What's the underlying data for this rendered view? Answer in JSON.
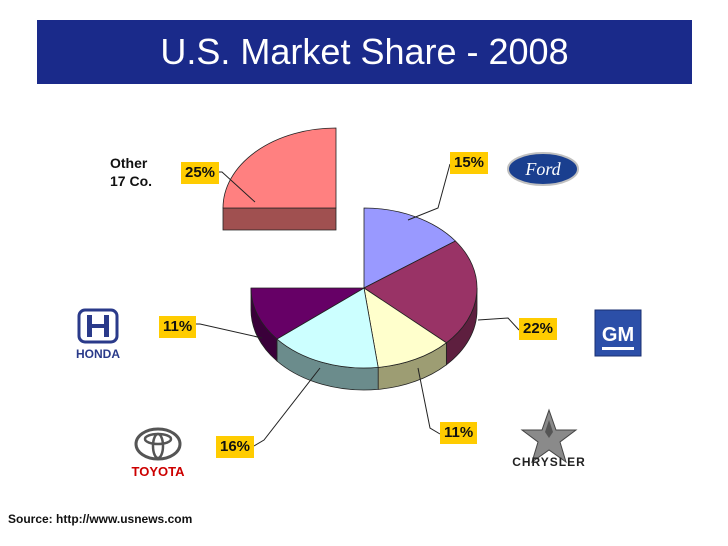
{
  "title": "U.S. Market Share - 2008",
  "source": "Source: http://www.usnews.com",
  "other_label": [
    "Other",
    "17 Co."
  ],
  "logos": {
    "ford": "Ford",
    "gm": "GM",
    "honda": "HONDA",
    "toyota": "TOYOTA",
    "chrysler": "CHRYSLER"
  },
  "chart_data": {
    "type": "pie",
    "title": "U.S. Market Share - 2008",
    "slices": [
      {
        "label": "Ford",
        "value": 15,
        "text": "15%",
        "color": "#9999ff",
        "side": "#6b6bb3"
      },
      {
        "label": "GM",
        "value": 22,
        "text": "22%",
        "color": "#993366",
        "side": "#5e1f3f"
      },
      {
        "label": "Chrysler",
        "value": 11,
        "text": "11%",
        "color": "#ffffcc",
        "side": "#9d9d73"
      },
      {
        "label": "Toyota",
        "value": 16,
        "text": "16%",
        "color": "#ccffff",
        "side": "#6b8c8c"
      },
      {
        "label": "Honda",
        "value": 11,
        "text": "11%",
        "color": "#660066",
        "side": "#3a003a"
      },
      {
        "label": "Other 17 Co.",
        "value": 25,
        "text": "25%",
        "color": "#ff8080",
        "side": "#a05050",
        "exploded": true
      }
    ]
  }
}
